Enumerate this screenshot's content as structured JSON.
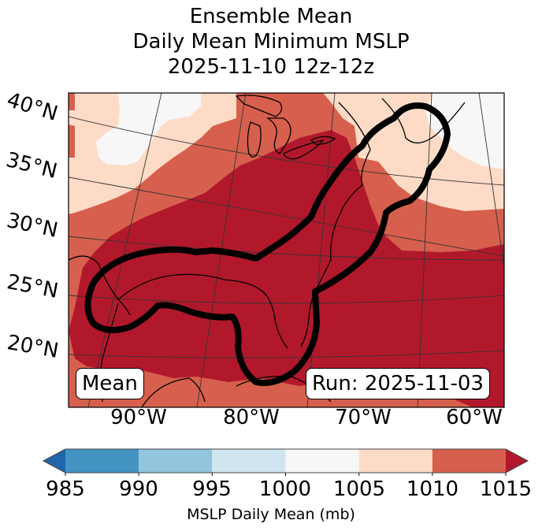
{
  "title": {
    "line1": "Ensemble Mean",
    "line2": "Daily Mean Minimum MSLP",
    "line3": "2025-11-10 12z-12z"
  },
  "map": {
    "lat_labels": [
      "40°N",
      "35°N",
      "30°N",
      "25°N",
      "20°N"
    ],
    "lon_labels": [
      "90°W",
      "80°W",
      "70°W",
      "60°W"
    ],
    "mean_label": "Mean",
    "run_label": "Run: 2025-11-03",
    "contour_color": "#000000"
  },
  "colorbar": {
    "ticks": [
      "985",
      "990",
      "995",
      "1000",
      "1005",
      "1010",
      "1015"
    ],
    "label": "MSLP Daily Mean (mb)",
    "under_color": "#2166ac",
    "over_color": "#b2182b",
    "bins": [
      {
        "from": 985,
        "to": 990,
        "color": "#4393c3"
      },
      {
        "from": 990,
        "to": 995,
        "color": "#92c5de"
      },
      {
        "from": 995,
        "to": 1000,
        "color": "#d1e5f0"
      },
      {
        "from": 1000,
        "to": 1005,
        "color": "#f7f7f7"
      },
      {
        "from": 1005,
        "to": 1010,
        "color": "#fddbc7"
      },
      {
        "from": 1010,
        "to": 1015,
        "color": "#d6604d"
      }
    ]
  }
}
